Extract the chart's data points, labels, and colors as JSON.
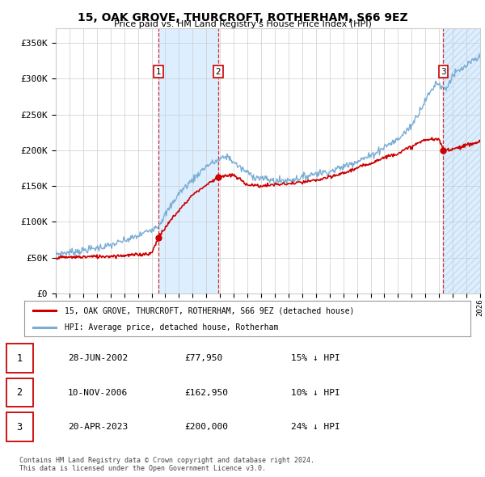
{
  "title": "15, OAK GROVE, THURCROFT, ROTHERHAM, S66 9EZ",
  "subtitle": "Price paid vs. HM Land Registry's House Price Index (HPI)",
  "ylabel_ticks": [
    "£0",
    "£50K",
    "£100K",
    "£150K",
    "£200K",
    "£250K",
    "£300K",
    "£350K"
  ],
  "ytick_values": [
    0,
    50000,
    100000,
    150000,
    200000,
    250000,
    300000,
    350000
  ],
  "ylim": [
    0,
    370000
  ],
  "xlim_start": 1995.3,
  "xlim_end": 2026.0,
  "hpi_color": "#7aadd4",
  "price_color": "#cc0000",
  "shade_color": "#ddeeff",
  "hatch_color": "#c8ddf0",
  "grid_color": "#cccccc",
  "transaction_markers": [
    {
      "date": 2002.49,
      "price": 77950,
      "label": "1"
    },
    {
      "date": 2006.86,
      "price": 162950,
      "label": "2"
    },
    {
      "date": 2023.31,
      "price": 200000,
      "label": "3"
    }
  ],
  "shade_regions": [
    {
      "start": 2002.49,
      "end": 2006.86,
      "hatch": false
    },
    {
      "start": 2023.31,
      "end": 2026.0,
      "hatch": true
    }
  ],
  "legend_entries": [
    "15, OAK GROVE, THURCROFT, ROTHERHAM, S66 9EZ (detached house)",
    "HPI: Average price, detached house, Rotherham"
  ],
  "table_rows": [
    {
      "num": "1",
      "date": "28-JUN-2002",
      "price": "£77,950",
      "change": "15% ↓ HPI"
    },
    {
      "num": "2",
      "date": "10-NOV-2006",
      "price": "£162,950",
      "change": "10% ↓ HPI"
    },
    {
      "num": "3",
      "date": "20-APR-2023",
      "price": "£200,000",
      "change": "24% ↓ HPI"
    }
  ],
  "footnote": "Contains HM Land Registry data © Crown copyright and database right 2024.\nThis data is licensed under the Open Government Licence v3.0.",
  "background_color": "#ffffff"
}
